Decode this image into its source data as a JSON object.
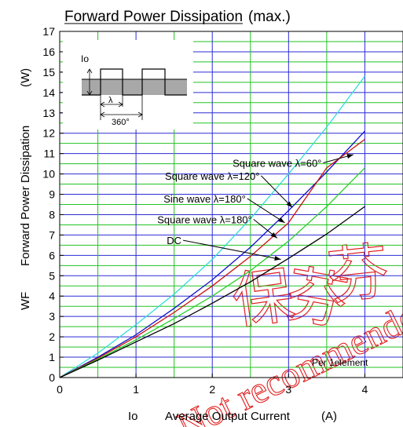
{
  "chart_data": {
    "type": "line",
    "title": "Forward Power Dissipation",
    "title_suffix": "(max.)",
    "xlabel_symbol": "Io",
    "xlabel": "Average Output Current",
    "xlabel_unit": "(A)",
    "ylabel_symbol": "WF",
    "ylabel": "Forward Power Dissipation",
    "ylabel_unit": "(W)",
    "xlim": [
      0,
      4.5
    ],
    "ylim": [
      0,
      17
    ],
    "xticks": [
      0,
      1,
      2,
      3,
      4
    ],
    "yticks": [
      0,
      1,
      2,
      3,
      4,
      5,
      6,
      7,
      8,
      9,
      10,
      11,
      12,
      13,
      14,
      15,
      16,
      17
    ],
    "grid": true,
    "annotation": "Per 1element",
    "inset": {
      "io_label": "Io",
      "lambda_label": "λ",
      "period_label": "360°"
    },
    "colors": {
      "grid_major": "#2b2bd6",
      "grid_minor": "#22c322",
      "square60": "#33dddd",
      "square120": "#1010cc",
      "sine180": "#cc1010",
      "square180": "#2ad12a",
      "dc": "#000000",
      "watermark": "#e02020"
    },
    "watermark": [
      "保",
      "芬",
      "芬"
    ],
    "watermark_text": "Not recommended",
    "series": [
      {
        "name": "Square wave λ=60°",
        "color_key": "square60",
        "x": [
          0,
          0.5,
          1,
          1.5,
          2,
          2.5,
          3,
          3.5,
          4
        ],
        "y": [
          0,
          1.2,
          2.6,
          4.1,
          5.8,
          7.8,
          10.0,
          12.3,
          14.8
        ]
      },
      {
        "name": "Square wave λ=120°",
        "color_key": "square120",
        "x": [
          0,
          0.5,
          1,
          1.5,
          2,
          2.5,
          3,
          3.5,
          4
        ],
        "y": [
          0,
          1.0,
          2.1,
          3.4,
          4.8,
          6.4,
          8.2,
          10.1,
          12.1
        ]
      },
      {
        "name": "Sine wave λ=180°",
        "color_key": "sine180",
        "x": [
          0,
          0.5,
          1,
          1.5,
          2,
          2.5,
          3,
          3.5,
          4
        ],
        "y": [
          0,
          0.95,
          2.0,
          3.2,
          4.5,
          5.95,
          7.6,
          10.3,
          11.7
        ]
      },
      {
        "name": "Square wave λ=180°",
        "color_key": "square180",
        "x": [
          0,
          0.5,
          1,
          1.5,
          2,
          2.5,
          3,
          3.5,
          4
        ],
        "y": [
          0,
          0.9,
          1.85,
          2.9,
          4.0,
          5.25,
          6.7,
          8.4,
          10.3
        ]
      },
      {
        "name": "DC",
        "color_key": "dc",
        "x": [
          0,
          0.5,
          1,
          1.5,
          2,
          2.5,
          3,
          3.5,
          4
        ],
        "y": [
          0,
          0.85,
          1.75,
          2.65,
          3.65,
          4.7,
          5.85,
          7.05,
          8.4
        ]
      }
    ],
    "labels": [
      {
        "series": 0,
        "text": "Square wave λ=60°",
        "at": [
          3.85,
          10.95
        ],
        "to": [
          2.85,
          10.35
        ]
      },
      {
        "series": 1,
        "text": "Square wave λ=120°",
        "at": [
          3.05,
          8.35
        ],
        "to": [
          2.0,
          9.72
        ]
      },
      {
        "series": 2,
        "text": "Sine wave λ=180°",
        "at": [
          2.95,
          7.6
        ],
        "to": [
          1.9,
          8.6
        ]
      },
      {
        "series": 3,
        "text": "Square wave λ=180°",
        "at": [
          2.85,
          6.85
        ],
        "to": [
          1.9,
          7.58
        ]
      },
      {
        "series": 4,
        "text": "DC",
        "at": [
          2.9,
          5.8
        ],
        "to": [
          1.5,
          6.55
        ]
      }
    ]
  }
}
